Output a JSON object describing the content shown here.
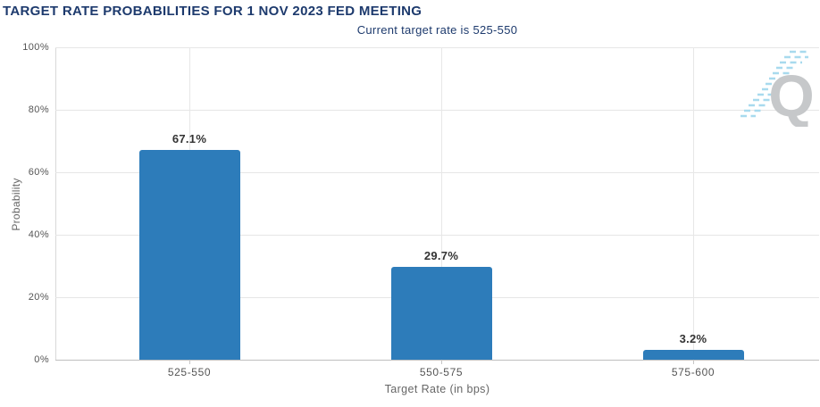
{
  "page": {
    "title": "TARGET RATE PROBABILITIES FOR 1 NOV 2023 FED MEETING",
    "subtitle": "Current target rate is 525-550"
  },
  "watermark": {
    "icon": "quikstrike-q-logo",
    "letter": "Q",
    "q_color": "#c6c8ca",
    "dash_color": "#a8daee"
  },
  "colors": {
    "bar": "#2d7cba",
    "title_text": "#1d3a6d",
    "axis_text": "#555555",
    "axis_title_text": "#666666",
    "gridline": "#e6e6e6",
    "background": "#ffffff"
  },
  "chart_data": {
    "type": "bar",
    "title": "TARGET RATE PROBABILITIES FOR 1 NOV 2023 FED MEETING",
    "subtitle": "Current target rate is 525-550",
    "categories": [
      "525-550",
      "550-575",
      "575-600"
    ],
    "values": [
      67.1,
      29.7,
      3.2
    ],
    "data_labels": [
      "67.1%",
      "29.7%",
      "3.2%"
    ],
    "xlabel": "Target Rate (in bps)",
    "ylabel": "Probability",
    "ylim": [
      0,
      100
    ],
    "yticks": [
      0,
      20,
      40,
      60,
      80,
      100
    ],
    "ytick_labels": [
      "0%",
      "20%",
      "40%",
      "60%",
      "80%",
      "100%"
    ],
    "grid": true,
    "legend": false,
    "bar_color": "#2d7cba"
  }
}
